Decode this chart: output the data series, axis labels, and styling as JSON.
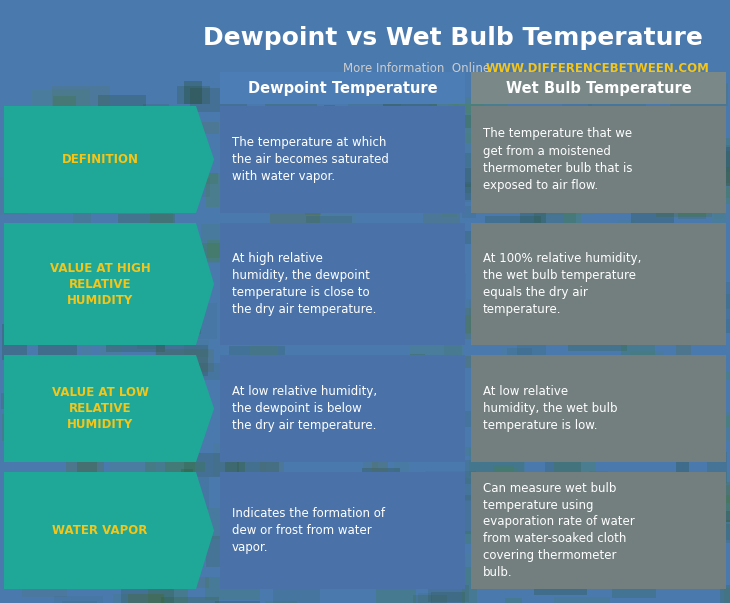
{
  "title": "Dewpoint vs Wet Bulb Temperature",
  "subtitle_gray": "More Information  Online  ",
  "subtitle_url": "WWW.DIFFERENCEBETWEEN.COM",
  "col1_header": "Dewpoint Temperature",
  "col2_header": "Wet Bulb Temperature",
  "row_labels": [
    "DEFINITION",
    "VALUE AT HIGH\nRELATIVE\nHUMIDITY",
    "VALUE AT LOW\nRELATIVE\nHUMIDITY",
    "WATER VAPOR"
  ],
  "col1_data": [
    "The temperature at which\nthe air becomes saturated\nwith water vapor.",
    "At high relative\nhumidity, the dewpoint\ntemperature is close to\nthe dry air temperature.",
    "At low relative humidity,\nthe dewpoint is below\nthe dry air temperature.",
    "Indicates the formation of\ndew or frost from water\nvapor."
  ],
  "col2_data": [
    "The temperature that we\nget from a moistened\nthermometer bulb that is\nexposed to air flow.",
    "At 100% relative humidity,\nthe wet bulb temperature\nequals the dry air\ntemperature.",
    "At low relative\nhumidity, the wet bulb\ntemperature is low.",
    "Can measure wet bulb\ntemperature using\nevaporation rate of water\nfrom water-soaked cloth\ncovering thermometer\nbulb."
  ],
  "bg_color": "#4a7aad",
  "teal_color": "#1fa898",
  "col1_bg": "#4a72a8",
  "col2_bg": "#737e7e",
  "header_col1_bg": "#4d7db5",
  "header_col2_bg": "#7a8888",
  "title_color": "#ffffff",
  "subtitle_color": "#cccccc",
  "url_color": "#f5c518",
  "label_color": "#f5c518",
  "cell_text_color": "#ffffff",
  "header_text_color": "#ffffff",
  "fig_width": 7.3,
  "fig_height": 6.03,
  "dpi": 100
}
